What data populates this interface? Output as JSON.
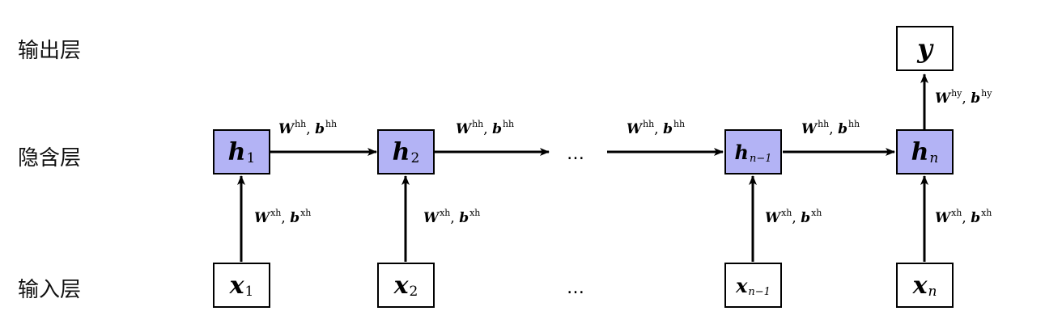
{
  "layers": {
    "output": "输出层",
    "hidden": "隐含层",
    "input": "输入层"
  },
  "nodes": {
    "h1": {
      "sym": "h",
      "sub": "1"
    },
    "h2": {
      "sym": "h",
      "sub": "2"
    },
    "hn1": {
      "sym": "h",
      "sub": "n−1"
    },
    "hn": {
      "sym": "h",
      "sub": "n"
    },
    "x1": {
      "sym": "x",
      "sub": "1"
    },
    "x2": {
      "sym": "x",
      "sub": "2"
    },
    "xn1": {
      "sym": "x",
      "sub": "n−1"
    },
    "xn": {
      "sym": "x",
      "sub": "n"
    },
    "y": {
      "sym": "y"
    }
  },
  "edge_labels": {
    "hh": {
      "w": "W",
      "ws": "hh",
      "sep": ", ",
      "b": "b",
      "bs": "hh"
    },
    "xh": {
      "w": "W",
      "ws": "xh",
      "sep": ", ",
      "b": "b",
      "bs": "xh"
    },
    "hy": {
      "w": "W",
      "ws": "hy",
      "sep": ", ",
      "b": "b",
      "bs": "hy"
    }
  },
  "ellipsis": "…"
}
